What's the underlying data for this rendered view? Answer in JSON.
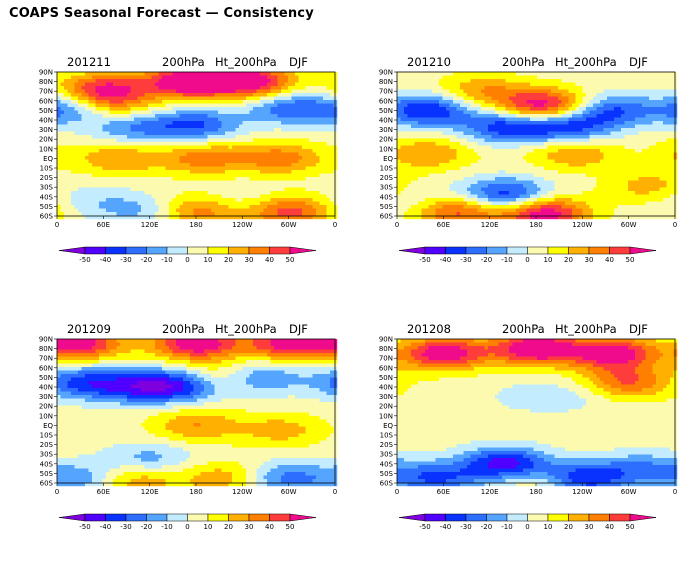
{
  "page": {
    "title": "COAPS Seasonal Forecast — Consistency"
  },
  "chart_data": {
    "type": "heatmap",
    "title": "COAPS Seasonal Forecast — Consistency",
    "lat_ticks": [
      "90N",
      "80N",
      "70N",
      "60N",
      "50N",
      "40N",
      "30N",
      "20N",
      "10N",
      "EQ",
      "10S",
      "20S",
      "30S",
      "40S",
      "50S",
      "60S"
    ],
    "lon_ticks": [
      "0",
      "60E",
      "120E",
      "180",
      "120W",
      "60W",
      "0"
    ],
    "colorbar": {
      "levels": [
        "-50",
        "-40",
        "-30",
        "-20",
        "-10",
        "0",
        "10",
        "20",
        "30",
        "40",
        "50"
      ],
      "colors": [
        "#7f00df",
        "#5000ff",
        "#0a32ff",
        "#2d6eff",
        "#55a5ff",
        "#c3edff",
        "#fbfaae",
        "#ffff00",
        "#ffb000",
        "#ff8000",
        "#ff3c3c",
        "#ef0b8c"
      ]
    },
    "panels": [
      {
        "name": "201211",
        "var": "200hPa",
        "field": "Ht_200hPa",
        "season": "DJF",
        "blobs": [
          {
            "lon": 60,
            "lat": 72,
            "v": 45
          },
          {
            "lon": 170,
            "lat": 80,
            "v": 60
          },
          {
            "lon": 250,
            "lat": 80,
            "v": 55
          },
          {
            "lon": 20,
            "lat": 52,
            "v": -30
          },
          {
            "lon": 300,
            "lat": 52,
            "v": -30
          },
          {
            "lon": 180,
            "lat": 35,
            "v": -35
          },
          {
            "lon": 100,
            "lat": 32,
            "v": -25
          },
          {
            "lon": 70,
            "lat": 55,
            "v": 25
          },
          {
            "lon": 190,
            "lat": 0,
            "v": 30
          },
          {
            "lon": 80,
            "lat": 0,
            "v": 25
          },
          {
            "lon": 290,
            "lat": 0,
            "v": 30
          },
          {
            "lon": 180,
            "lat": -55,
            "v": 35
          },
          {
            "lon": 300,
            "lat": -55,
            "v": 40
          },
          {
            "lon": 50,
            "lat": -45,
            "v": -12
          },
          {
            "lon": 120,
            "lat": -55,
            "v": -20
          },
          {
            "lon": 240,
            "lat": -45,
            "v": -10
          }
        ]
      },
      {
        "name": "201210",
        "var": "200hPa",
        "field": "Ht_200hPa",
        "season": "DJF",
        "blobs": [
          {
            "lon": 40,
            "lat": 50,
            "v": -45
          },
          {
            "lon": 190,
            "lat": 55,
            "v": 55
          },
          {
            "lon": 280,
            "lat": 50,
            "v": -35
          },
          {
            "lon": 140,
            "lat": 33,
            "v": -40
          },
          {
            "lon": 220,
            "lat": 33,
            "v": -40
          },
          {
            "lon": 110,
            "lat": 70,
            "v": 25
          },
          {
            "lon": 40,
            "lat": 5,
            "v": 25
          },
          {
            "lon": 230,
            "lat": 5,
            "v": 25
          },
          {
            "lon": 140,
            "lat": -38,
            "v": -45
          },
          {
            "lon": 80,
            "lat": -55,
            "v": 40
          },
          {
            "lon": 190,
            "lat": -57,
            "v": 55
          },
          {
            "lon": 20,
            "lat": -40,
            "v": -12
          },
          {
            "lon": 330,
            "lat": -30,
            "v": 22
          }
        ]
      },
      {
        "name": "201209",
        "var": "200hPa",
        "field": "Ht_200hPa",
        "season": "DJF",
        "blobs": [
          {
            "lon": 180,
            "lat": 85,
            "v": 55
          },
          {
            "lon": 30,
            "lat": 85,
            "v": 50
          },
          {
            "lon": 300,
            "lat": 85,
            "v": 50
          },
          {
            "lon": 30,
            "lat": 45,
            "v": -35
          },
          {
            "lon": 100,
            "lat": 40,
            "v": -35
          },
          {
            "lon": 160,
            "lat": 42,
            "v": -45
          },
          {
            "lon": 260,
            "lat": 50,
            "v": -30
          },
          {
            "lon": 210,
            "lat": 50,
            "v": 25
          },
          {
            "lon": 180,
            "lat": 0,
            "v": 25
          },
          {
            "lon": 290,
            "lat": -5,
            "v": 20
          },
          {
            "lon": 120,
            "lat": -35,
            "v": -20
          },
          {
            "lon": 30,
            "lat": -55,
            "v": -25
          },
          {
            "lon": 290,
            "lat": -55,
            "v": -30
          },
          {
            "lon": 100,
            "lat": -57,
            "v": 25
          },
          {
            "lon": 220,
            "lat": -55,
            "v": 25
          }
        ]
      },
      {
        "name": "201208",
        "var": "200hPa",
        "field": "Ht_200hPa",
        "season": "DJF",
        "blobs": [
          {
            "lon": 180,
            "lat": 80,
            "v": 60
          },
          {
            "lon": 60,
            "lat": 75,
            "v": 55
          },
          {
            "lon": 280,
            "lat": 75,
            "v": 55
          },
          {
            "lon": 300,
            "lat": 45,
            "v": 35
          },
          {
            "lon": 170,
            "lat": 30,
            "v": -8
          },
          {
            "lon": 230,
            "lat": 30,
            "v": -8
          },
          {
            "lon": 140,
            "lat": -40,
            "v": -50
          },
          {
            "lon": 240,
            "lat": -55,
            "v": -45
          },
          {
            "lon": 50,
            "lat": -55,
            "v": -35
          },
          {
            "lon": 190,
            "lat": -60,
            "v": 15
          },
          {
            "lon": 320,
            "lat": -45,
            "v": -25
          }
        ]
      }
    ]
  }
}
